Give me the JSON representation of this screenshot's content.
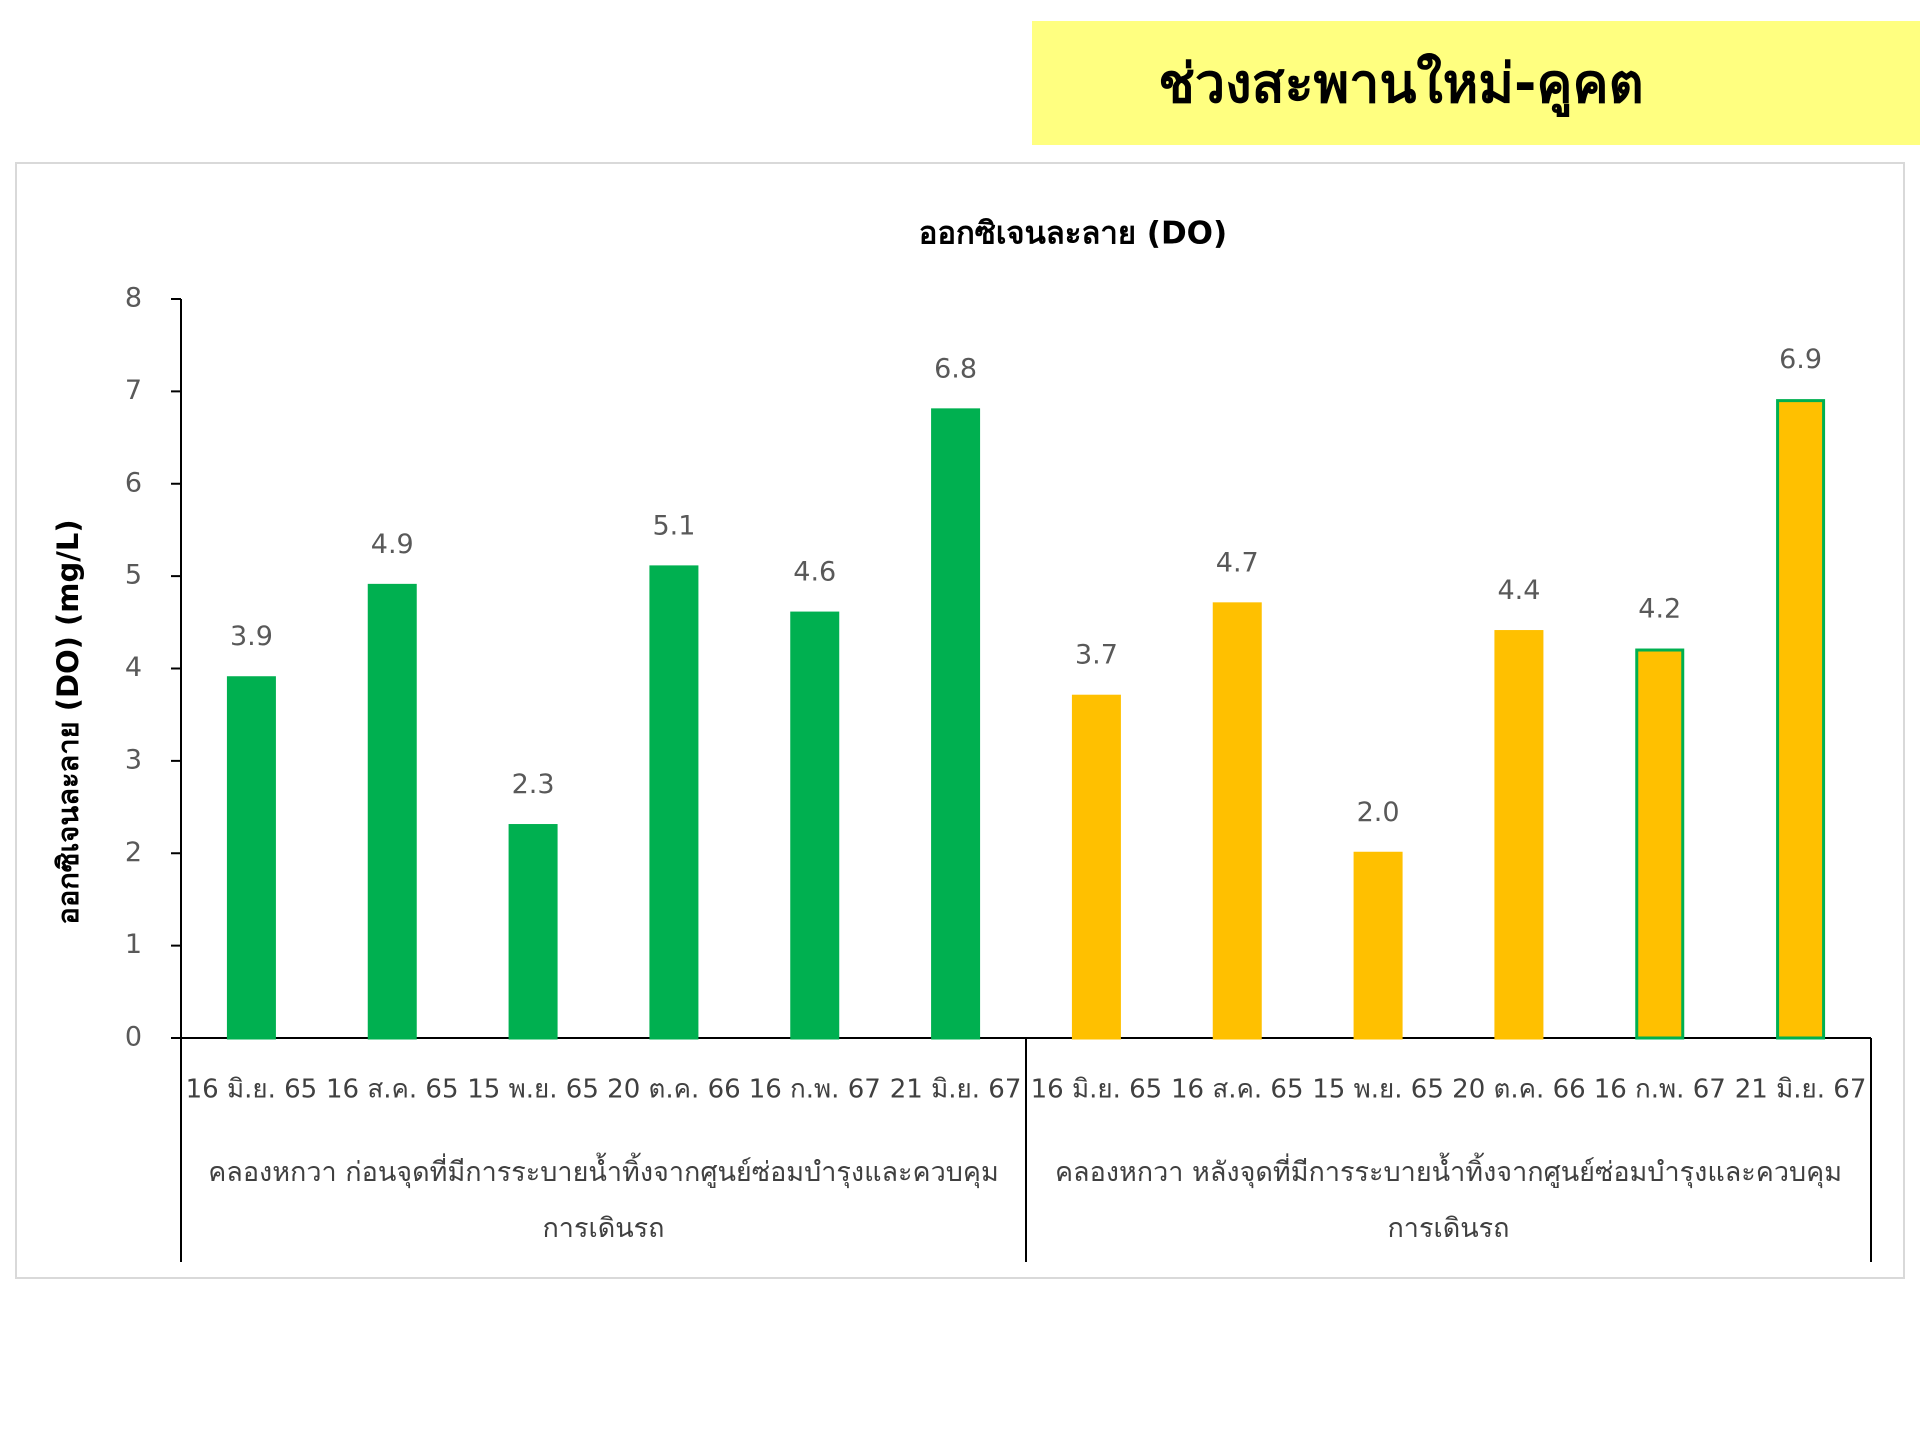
{
  "header": {
    "title": "ช่วงสะพานใหม่-คูคต"
  },
  "chart_data": {
    "type": "bar",
    "title": "ออกซิเจนละลาย (DO)",
    "ylabel": "ออกซิเจนละลาย (DO) (mg/L)",
    "categories": [
      "16 มิ.ย. 65",
      "16 ส.ค. 65",
      "15 พ.ย. 65",
      "20 ต.ค. 66",
      "16 ก.พ. 67",
      "21 มิ.ย. 67",
      "16 มิ.ย. 65",
      "16 ส.ค. 65",
      "15 พ.ย. 65",
      "20 ต.ค. 66",
      "16 ก.พ. 67",
      "21 มิ.ย. 67"
    ],
    "group_labels": [
      "คลองหกวา ก่อนจุดที่มีการระบายน้ำทิ้งจากศูนย์ซ่อมบำรุงและควบคุมการเดินรถ",
      "คลองหกวา หลังจุดที่มีการระบายน้ำทิ้งจากศูนย์ซ่อมบำรุงและควบคุมการเดินรถ"
    ],
    "values": [
      3.9,
      4.9,
      2.3,
      5.1,
      4.6,
      6.8,
      3.7,
      4.7,
      2.0,
      4.4,
      4.2,
      6.9
    ],
    "value_labels": [
      "3.9",
      "4.9",
      "2.3",
      "5.1",
      "4.6",
      "6.8",
      "3.7",
      "4.7",
      "2.0",
      "4.4",
      "4.2",
      "6.9"
    ],
    "colors": [
      "#00b050",
      "#00b050",
      "#00b050",
      "#00b050",
      "#00b050",
      "#00b050",
      "#ffc000",
      "#ffc000",
      "#ffc000",
      "#ffc000",
      "#ffc000",
      "#ffc000"
    ],
    "edgecolors": [
      "#00b050",
      "#00b050",
      "#00b050",
      "#00b050",
      "#00b050",
      "#00b050",
      "#ffc000",
      "#ffc000",
      "#ffc000",
      "#ffc000",
      "#00b050",
      "#00b050"
    ],
    "ylim": [
      0,
      8
    ],
    "yticks": [
      0,
      1,
      2,
      3,
      4,
      5,
      6,
      7,
      8
    ],
    "grid": false
  }
}
